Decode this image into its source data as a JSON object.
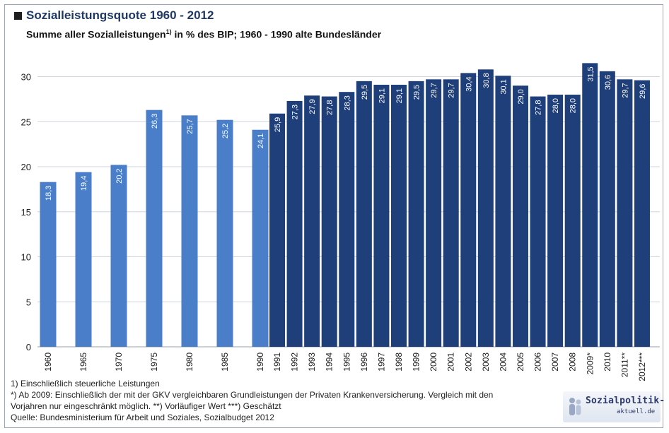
{
  "header": {
    "title": "Sozialleistungsquote 1960 - 2012",
    "subtitle_pre": "Summe aller Sozialleistungen",
    "subtitle_sup": "1)",
    "subtitle_post": " in % des BIP; 1960 - 1990 alte Bundesländer"
  },
  "footnotes": {
    "line1": "1) Einschließlich steuerliche Leistungen",
    "line2": "*) Ab 2009: Einschließlich der mit der GKV vergleichbaren Grundleistungen der Privaten Krankenversicherung. Vergleich mit den",
    "line3": "Vorjahren nur eingeschränkt möglich. **) Vorläufiger Wert   ***) Geschätzt",
    "line4": "Quelle: Bundesministerium für Arbeit und Soziales, Sozialbudget 2012"
  },
  "logo": {
    "main": "Sozialpolitik-",
    "sub": "aktuell.de"
  },
  "colors": {
    "early": "#4a7ec9",
    "late": "#1f3f7a",
    "grid": "#cfd6df",
    "label": "#ffffff",
    "axis_text": "#222222"
  },
  "chart_data": {
    "type": "bar",
    "title": "Sozialleistungsquote 1960 - 2012",
    "ylim": [
      0,
      32
    ],
    "yticks": [
      0,
      5,
      10,
      15,
      20,
      25,
      30
    ],
    "grid": true,
    "categories": [
      "1960",
      "1965",
      "1970",
      "1975",
      "1980",
      "1985",
      "1990",
      "1991",
      "1992",
      "1993",
      "1994",
      "1995",
      "1996",
      "1997",
      "1998",
      "1999",
      "2000",
      "2001",
      "2002",
      "2003",
      "2004",
      "2005",
      "2006",
      "2007",
      "2008",
      "2009*",
      "2010",
      "2011**",
      "2012***"
    ],
    "values": [
      18.3,
      19.4,
      20.2,
      26.3,
      25.7,
      25.2,
      24.1,
      25.9,
      27.3,
      27.9,
      27.8,
      28.3,
      29.5,
      29.1,
      29.1,
      29.5,
      29.7,
      29.7,
      30.4,
      30.8,
      30.1,
      29.0,
      27.8,
      28.0,
      28.0,
      31.5,
      30.6,
      29.7,
      29.6
    ],
    "value_labels": [
      "18,3",
      "19,4",
      "20,2",
      "26,3",
      "25,7",
      "25,2",
      "24,1",
      "25,9",
      "27,3",
      "27,9",
      "27,8",
      "28,3",
      "29,5",
      "29,1",
      "29,1",
      "29,5",
      "29,7",
      "29,7",
      "30,4",
      "30,8",
      "30,1",
      "29,0",
      "27,8",
      "28,0",
      "28,0",
      "31,5",
      "30,6",
      "29,7",
      "29,6"
    ],
    "series_group": [
      "early",
      "early",
      "early",
      "early",
      "early",
      "early",
      "early",
      "late",
      "late",
      "late",
      "late",
      "late",
      "late",
      "late",
      "late",
      "late",
      "late",
      "late",
      "late",
      "late",
      "late",
      "late",
      "late",
      "late",
      "late",
      "late",
      "late",
      "late",
      "late"
    ]
  }
}
